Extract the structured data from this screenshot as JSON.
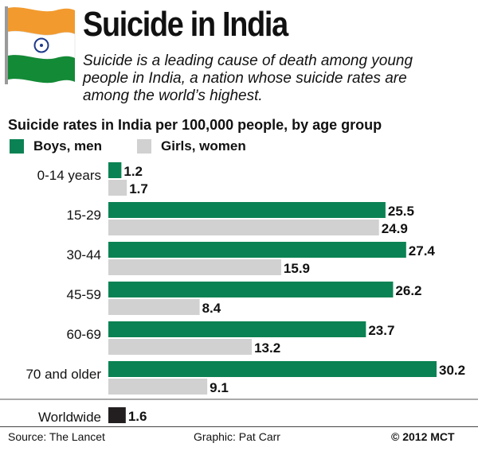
{
  "header": {
    "title": "Suicide in India",
    "subtitle": "Suicide is a leading cause of death among young people in India, a nation whose suicide rates are among the world’s highest."
  },
  "footer": {
    "source": "Source: The Lancet",
    "graphic": "Graphic: Pat Carr",
    "copyright": "© 2012 MCT"
  },
  "colors": {
    "male": "#0b8253",
    "female": "#d1d1d1",
    "worldwide": "#231f20",
    "flag_saffron": "#f29a2e",
    "flag_green": "#138a36",
    "flag_chakra": "#1f3a8a"
  },
  "icons": {
    "flag": "india-flag-icon"
  },
  "chart_data": {
    "type": "bar",
    "orientation": "horizontal",
    "title": "Suicide rates in India per 100,000 people, by age group",
    "categories": [
      "0-14 years",
      "15-29",
      "30-44",
      "45-59",
      "60-69",
      "70 and older"
    ],
    "series": [
      {
        "name": "Boys, men",
        "values": [
          1.2,
          25.5,
          27.4,
          26.2,
          23.7,
          30.2
        ]
      },
      {
        "name": "Girls, women",
        "values": [
          1.7,
          24.9,
          15.9,
          8.4,
          13.2,
          9.1
        ]
      }
    ],
    "worldwide": {
      "label": "Worldwide",
      "value": 1.6
    },
    "xlim": [
      0,
      30.2
    ],
    "xlabel": "",
    "ylabel": "",
    "grid": false
  }
}
